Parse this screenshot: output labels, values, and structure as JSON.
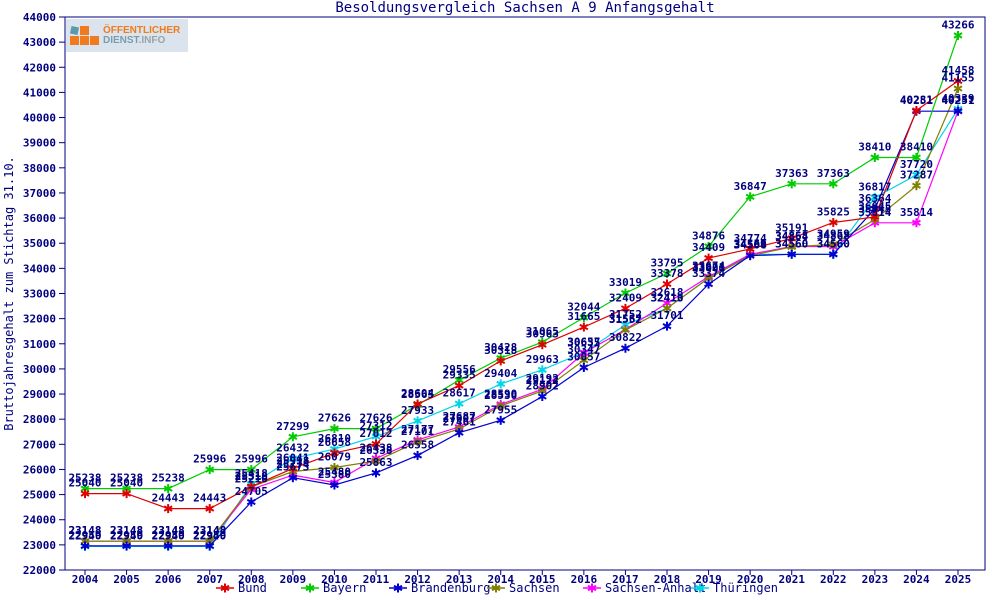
{
  "logo": {
    "line1": "ÖFFENTLICHER",
    "line2_dienst": "DIENST",
    "line2_info": ".INFO"
  },
  "frame_color": "#000080",
  "text_color": "#000080",
  "chart_data": {
    "type": "line",
    "title": "Besoldungsvergleich Sachsen A 9 Anfangsgehalt",
    "ylabel": "Bruttojahresgehalt zum Stichtag 31.10.",
    "xlabel": "",
    "ylim": [
      22000,
      44000
    ],
    "ytick_step": 1000,
    "grid": false,
    "legend_position": "bottom",
    "marker": "asterisk",
    "point_labels": true,
    "categories": [
      2004,
      2005,
      2006,
      2007,
      2008,
      2009,
      2010,
      2011,
      2012,
      2013,
      2014,
      2015,
      2016,
      2017,
      2018,
      2019,
      2020,
      2021,
      2022,
      2023,
      2024,
      2025
    ],
    "series": [
      {
        "name": "Bund",
        "color": "#e00000",
        "values": [
          25040,
          25040,
          24443,
          24443,
          25318,
          26041,
          26658,
          27012,
          28604,
          29335,
          30318,
          30963,
          31665,
          32409,
          33378,
          34409,
          34774,
          35191,
          35825,
          36045,
          40281,
          41458
        ]
      },
      {
        "name": "Bayern",
        "color": "#00cc00",
        "values": [
          25238,
          25238,
          25238,
          25996,
          25996,
          27299,
          27626,
          27626,
          28565,
          29556,
          30428,
          31065,
          32044,
          33019,
          33795,
          34876,
          36847,
          37363,
          37363,
          38410,
          38410,
          43266
        ]
      },
      {
        "name": "Brandenburg",
        "color": "#0000d0",
        "values": [
          22959,
          22959,
          22959,
          22959,
          24705,
          25673,
          25380,
          25863,
          26558,
          27461,
          27955,
          28902,
          30057,
          30822,
          31701,
          33374,
          34508,
          34560,
          34560,
          36364,
          40251,
          40251
        ]
      },
      {
        "name": "Sachsen",
        "color": "#808000",
        "values": [
          23148,
          23148,
          23148,
          23148,
          25310,
          25918,
          26079,
          26338,
          27101,
          27607,
          28530,
          29122,
          30347,
          31552,
          32410,
          33604,
          34504,
          34854,
          34959,
          35945,
          37287,
          41155
        ]
      },
      {
        "name": "Sachsen-Anhalt",
        "color": "#ff00ff",
        "values": [
          23148,
          23148,
          23148,
          23148,
          25210,
          25774,
          25480,
          26438,
          27177,
          27687,
          28590,
          29192,
          30635,
          31567,
          32618,
          33674,
          34559,
          34868,
          34868,
          35814,
          35814,
          40257
        ]
      },
      {
        "name": "Thüringen",
        "color": "#00d5e8",
        "values": [
          22940,
          22940,
          22940,
          22940,
          25418,
          26432,
          26810,
          27312,
          27933,
          28617,
          29404,
          29963,
          30657,
          31752,
          32413,
          33621,
          34560,
          34560,
          34560,
          36817,
          37720,
          40339
        ]
      }
    ]
  }
}
